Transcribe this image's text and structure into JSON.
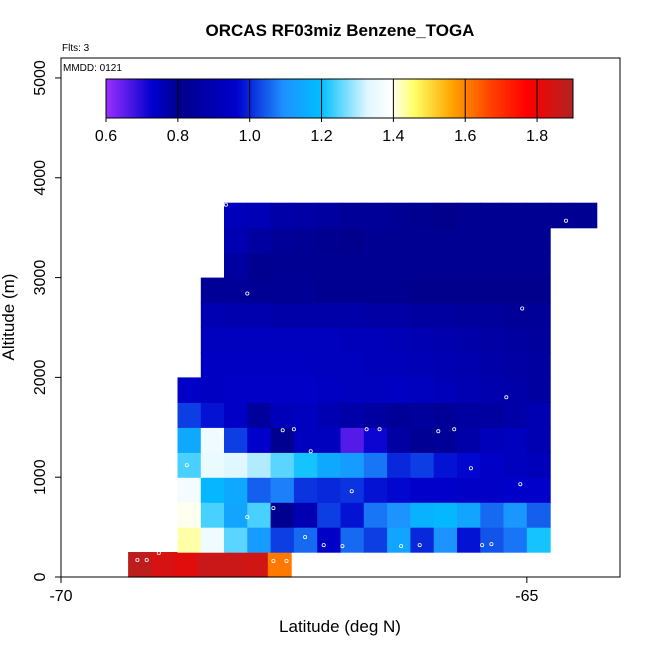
{
  "chart_data": {
    "type": "heatmap",
    "title": "ORCAS RF03miz Benzene_TOGA",
    "annotations": {
      "flights": "Flts: 3",
      "date": "MMDD: 0121"
    },
    "xlabel": "Latitude (deg N)",
    "ylabel": "Altitude (m)",
    "xlim": [
      -70.0,
      -64.0
    ],
    "ylim": [
      0,
      5200
    ],
    "x_ticks": [
      -70,
      -65
    ],
    "x_tick_labels": [
      "-70",
      "-65"
    ],
    "y_ticks": [
      0,
      1000,
      2000,
      3000,
      4000,
      5000
    ],
    "y_tick_labels": [
      "0",
      "1000",
      "2000",
      "3000",
      "4000",
      "5000"
    ],
    "grid": false,
    "colorbar": {
      "position": "top-left inset",
      "range": [
        0.6,
        1.9
      ],
      "ticks": [
        0.6,
        0.8,
        1.0,
        1.2,
        1.4,
        1.6,
        1.8
      ],
      "tick_labels": [
        "0.6",
        "0.8",
        "1.0",
        "1.2",
        "1.4",
        "1.6",
        "1.8"
      ],
      "colors": [
        "#9b30ff",
        "#0000cd",
        "#00008b",
        "#0000cd",
        "#1e90ff",
        "#00bfff",
        "#ffffff",
        "#ffff66",
        "#ffa500",
        "#ff4500",
        "#ff0000",
        "#b22222"
      ]
    },
    "cell_height": 250,
    "rows": [
      {
        "alt": 0,
        "lat_start": -69.28,
        "dlat": 0.25,
        "values": [
          1.88,
          1.84,
          1.82,
          1.86,
          1.86,
          1.85,
          1.61
        ]
      },
      {
        "alt": 250,
        "lat_start": -68.75,
        "dlat": 0.25,
        "values": [
          1.43,
          1.36,
          1.25,
          1.12,
          1.02,
          1.06,
          0.95,
          1.06,
          1.02,
          1.14,
          1.0,
          1.1,
          0.98,
          1.04,
          1.07,
          1.21
        ]
      },
      {
        "alt": 500,
        "lat_start": -68.75,
        "dlat": 0.25,
        "values": [
          1.4,
          1.24,
          1.14,
          1.24,
          0.82,
          0.9,
          1.02,
          0.98,
          1.07,
          1.1,
          1.17,
          1.18,
          1.14,
          1.06,
          1.11,
          1.05
        ]
      },
      {
        "alt": 750,
        "lat_start": -68.75,
        "dlat": 0.25,
        "values": [
          1.37,
          1.18,
          1.15,
          1.05,
          1.08,
          1.01,
          1.0,
          1.01,
          0.98,
          0.97,
          0.96,
          0.96,
          0.95,
          0.95,
          0.96,
          0.96
        ]
      },
      {
        "alt": 1000,
        "lat_start": -68.75,
        "dlat": 0.25,
        "values": [
          1.24,
          1.35,
          1.33,
          1.3,
          1.25,
          1.21,
          1.15,
          1.12,
          1.07,
          1.0,
          1.02,
          0.98,
          0.97,
          0.95,
          0.93,
          0.92
        ]
      },
      {
        "alt": 1250,
        "lat_start": -68.75,
        "dlat": 0.25,
        "values": [
          1.15,
          1.36,
          1.02,
          0.96,
          0.82,
          0.93,
          0.93,
          0.66,
          0.72,
          0.78,
          0.8,
          0.84,
          0.88,
          0.92,
          0.93,
          0.9
        ]
      },
      {
        "alt": 1500,
        "lat_start": -68.75,
        "dlat": 0.25,
        "values": [
          1.02,
          0.98,
          0.95,
          0.85,
          0.92,
          0.93,
          0.9,
          0.88,
          0.86,
          0.84,
          0.85,
          0.84,
          0.86,
          0.86,
          0.88,
          0.9
        ]
      },
      {
        "alt": 1750,
        "lat_start": -68.75,
        "dlat": 0.25,
        "values": [
          0.95,
          0.94,
          0.95,
          0.95,
          0.95,
          0.95,
          0.94,
          0.93,
          0.93,
          0.94,
          0.93,
          0.92,
          0.9,
          0.89,
          0.88,
          0.86
        ]
      },
      {
        "alt": 2000,
        "lat_start": -68.5,
        "dlat": 0.25,
        "values": [
          0.94,
          0.94,
          0.94,
          0.94,
          0.94,
          0.93,
          0.93,
          0.92,
          0.92,
          0.91,
          0.9,
          0.89,
          0.88,
          0.87,
          0.86
        ]
      },
      {
        "alt": 2250,
        "lat_start": -68.5,
        "dlat": 0.25,
        "values": [
          0.93,
          0.93,
          0.93,
          0.93,
          0.93,
          0.93,
          0.92,
          0.92,
          0.91,
          0.9,
          0.89,
          0.88,
          0.87,
          0.86,
          0.85
        ]
      },
      {
        "alt": 2500,
        "lat_start": -68.5,
        "dlat": 0.25,
        "values": [
          0.9,
          0.89,
          0.89,
          0.88,
          0.88,
          0.88,
          0.88,
          0.87,
          0.87,
          0.86,
          0.86,
          0.85,
          0.85,
          0.84,
          0.84
        ]
      },
      {
        "alt": 2750,
        "lat_start": -68.5,
        "dlat": 0.25,
        "values": [
          0.84,
          0.84,
          0.83,
          0.83,
          0.83,
          0.82,
          0.82,
          0.82,
          0.82,
          0.81,
          0.81,
          0.81,
          0.81,
          0.81,
          0.81
        ]
      },
      {
        "alt": 3000,
        "lat_start": -68.25,
        "dlat": 0.25,
        "values": [
          0.86,
          0.82,
          0.8,
          0.8,
          0.8,
          0.8,
          0.8,
          0.8,
          0.8,
          0.8,
          0.8,
          0.8,
          0.8,
          0.8
        ]
      },
      {
        "alt": 3250,
        "lat_start": -68.25,
        "dlat": 0.25,
        "values": [
          0.9,
          0.86,
          0.84,
          0.83,
          0.82,
          0.81,
          0.8,
          0.8,
          0.8,
          0.8,
          0.8,
          0.8,
          0.8,
          0.8
        ]
      },
      {
        "alt": 3500,
        "lat_start": -68.25,
        "dlat": 0.25,
        "values": [
          0.92,
          0.91,
          0.88,
          0.87,
          0.86,
          0.84,
          0.84,
          0.83,
          0.82,
          0.81,
          0.8,
          0.8,
          0.8,
          0.8,
          0.8,
          0.8
        ]
      }
    ],
    "samples": [
      {
        "lat": -69.18,
        "alt": 170
      },
      {
        "lat": -69.08,
        "alt": 170
      },
      {
        "lat": -68.95,
        "alt": 240
      },
      {
        "lat": -67.72,
        "alt": 160
      },
      {
        "lat": -67.58,
        "alt": 160
      },
      {
        "lat": -67.18,
        "alt": 320
      },
      {
        "lat": -66.98,
        "alt": 310
      },
      {
        "lat": -66.35,
        "alt": 310
      },
      {
        "lat": -66.15,
        "alt": 320
      },
      {
        "lat": -65.48,
        "alt": 320
      },
      {
        "lat": -65.38,
        "alt": 330
      },
      {
        "lat": -67.38,
        "alt": 400
      },
      {
        "lat": -68.75,
        "alt": 400
      },
      {
        "lat": -68.0,
        "alt": 600
      },
      {
        "lat": -67.72,
        "alt": 690
      },
      {
        "lat": -66.88,
        "alt": 860
      },
      {
        "lat": -65.07,
        "alt": 930
      },
      {
        "lat": -65.6,
        "alt": 1090
      },
      {
        "lat": -68.65,
        "alt": 1120
      },
      {
        "lat": -68.92,
        "alt": 1090
      },
      {
        "lat": -68.28,
        "alt": 1440
      },
      {
        "lat": -67.62,
        "alt": 1470
      },
      {
        "lat": -67.5,
        "alt": 1480
      },
      {
        "lat": -67.32,
        "alt": 1260
      },
      {
        "lat": -66.72,
        "alt": 1480
      },
      {
        "lat": -66.58,
        "alt": 1480
      },
      {
        "lat": -65.95,
        "alt": 1460
      },
      {
        "lat": -65.78,
        "alt": 1480
      },
      {
        "lat": -68.85,
        "alt": 1980
      },
      {
        "lat": -65.22,
        "alt": 1800
      },
      {
        "lat": -68.0,
        "alt": 2840
      },
      {
        "lat": -65.05,
        "alt": 2690
      },
      {
        "lat": -68.23,
        "alt": 3730
      },
      {
        "lat": -64.58,
        "alt": 3570
      }
    ]
  }
}
